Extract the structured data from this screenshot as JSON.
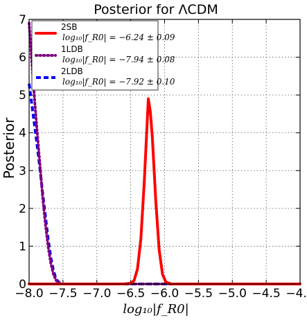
{
  "chart_data": {
    "type": "line",
    "title": "Posterior for ΛCDM",
    "xlabel": "log₁₀|f_R0|",
    "ylabel": "Posterior",
    "xlim": [
      -8.0,
      -4.0
    ],
    "ylim": [
      0,
      7
    ],
    "xticks": [
      -8.0,
      -7.5,
      -7.0,
      -6.5,
      -6.0,
      -5.5,
      -5.0,
      -4.5,
      -4.0
    ],
    "xtick_labels": [
      "−8.0",
      "−7.5",
      "−7.0",
      "−6.5",
      "−6.0",
      "−5.5",
      "−5.0",
      "−4.5",
      "−4.0"
    ],
    "yticks": [
      0,
      1,
      2,
      3,
      4,
      5,
      6,
      7
    ],
    "ytick_labels": [
      "0",
      "1",
      "2",
      "3",
      "4",
      "5",
      "6",
      "7"
    ],
    "grid": true,
    "legend_position": "top-left",
    "series": [
      {
        "name": "2SB",
        "legend_detail": "log₁₀|f_R0| = −6.24 ± 0.09",
        "color": "#ff0000",
        "dash": "solid",
        "x": [
          -8.0,
          -6.6,
          -6.5,
          -6.45,
          -6.4,
          -6.35,
          -6.3,
          -6.27,
          -6.24,
          -6.21,
          -6.18,
          -6.13,
          -6.08,
          -6.03,
          -5.98,
          -5.9,
          -4.0
        ],
        "y": [
          0,
          0,
          0.02,
          0.09,
          0.4,
          1.2,
          2.7,
          3.8,
          4.9,
          4.55,
          3.85,
          2.2,
          0.9,
          0.25,
          0.05,
          0,
          0
        ]
      },
      {
        "name": "1LDB",
        "legend_detail": "log₁₀|f_R0| = −7.94 ± 0.08",
        "color": "#800080",
        "dash": "dot",
        "x": [
          -8.0,
          -7.96,
          -7.92,
          -7.88,
          -7.84,
          -7.8,
          -7.76,
          -7.72,
          -7.68,
          -7.64,
          -7.6,
          -7.55,
          -7.5,
          -4.0
        ],
        "y": [
          6.9,
          5.9,
          4.9,
          4.0,
          3.15,
          2.3,
          1.6,
          1.0,
          0.55,
          0.25,
          0.09,
          0.02,
          0,
          0
        ]
      },
      {
        "name": "2LDB",
        "legend_detail": "log₁₀|f_R0| = −7.92 ± 0.10",
        "color": "#0000ff",
        "dash": "dash",
        "x": [
          -8.0,
          -7.96,
          -7.92,
          -7.88,
          -7.84,
          -7.8,
          -7.76,
          -7.72,
          -7.68,
          -7.64,
          -7.6,
          -7.55,
          -7.5,
          -4.0
        ],
        "y": [
          5.3,
          4.75,
          4.2,
          3.65,
          3.05,
          2.4,
          1.8,
          1.2,
          0.7,
          0.35,
          0.12,
          0.03,
          0,
          0
        ]
      }
    ]
  }
}
